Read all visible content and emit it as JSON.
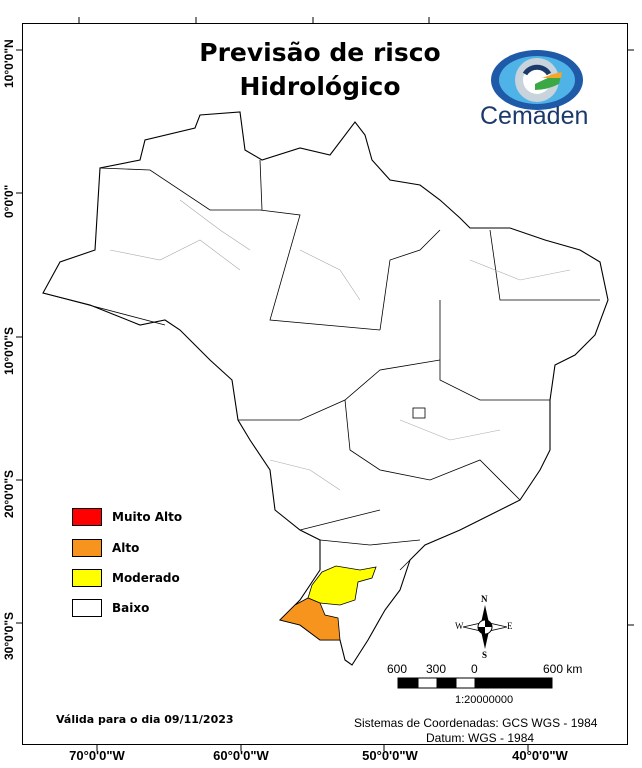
{
  "title_line1": "Previsão de risco",
  "title_line2": "Hidrológico",
  "logo": {
    "text": "Cemaden",
    "colors": [
      "#1e5aa8",
      "#4fb3e8",
      "#3aa845",
      "#f5a623"
    ]
  },
  "axes": {
    "longitude_labels": [
      "70°0'0\"W",
      "60°0'0\"W",
      "50°0'0\"W",
      "40°0'0\"W"
    ],
    "latitude_labels": [
      "10°0'0\"N",
      "0°0'0\"",
      "10°0'0\"S",
      "20°0'0\"S",
      "30°0'0\"S"
    ]
  },
  "legend": [
    {
      "label": "Muito Alto",
      "color": "#ff0000"
    },
    {
      "label": "Alto",
      "color": "#f7941d"
    },
    {
      "label": "Moderado",
      "color": "#ffff00"
    },
    {
      "label": "Baixo",
      "color": "#ffffff"
    }
  ],
  "compass": {
    "n": "N",
    "s": "S",
    "e": "E",
    "w": "W"
  },
  "scale": {
    "labels": [
      "600",
      "300",
      "0",
      "600 km"
    ],
    "ratio": "1:20000000"
  },
  "validity": "Válida para o dia 09/11/2023",
  "coordinate_system": "Sistemas de Coordenadas: GCS WGS - 1984",
  "datum": "Datum: WGS - 1984"
}
